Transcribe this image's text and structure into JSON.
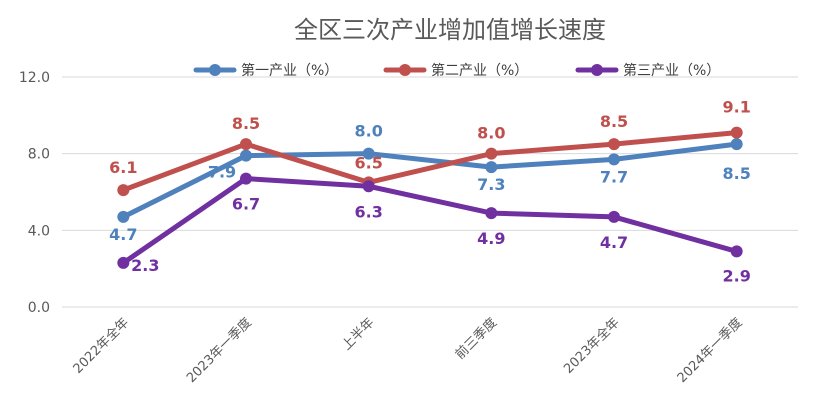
{
  "chart_data": {
    "type": "line",
    "title": "全区三次产业增加值增长速度",
    "categories": [
      "2022年全年",
      "2023年一季度",
      "上半年",
      "前三季度",
      "2023年全年",
      "2024年一季度"
    ],
    "yticks": [
      "12.0",
      "8.0",
      "4.0",
      "0.0"
    ],
    "ylim": [
      0,
      12
    ],
    "grid": true,
    "legend_position": "top",
    "series": [
      {
        "name": "第一产业（%）",
        "color": "#4F81BD",
        "values": [
          4.7,
          7.9,
          8.0,
          7.3,
          7.7,
          8.5
        ],
        "labels": [
          "4.7",
          "7.9",
          "8.0",
          "7.3",
          "7.7",
          "8.5"
        ]
      },
      {
        "name": "第二产业（%）",
        "color": "#C0504D",
        "values": [
          6.1,
          8.5,
          6.5,
          8.0,
          8.5,
          9.1
        ],
        "labels": [
          "6.1",
          "8.5",
          "6.5",
          "8.0",
          "8.5",
          "9.1"
        ]
      },
      {
        "name": "第三产业（%）",
        "color": "#7030A0",
        "values": [
          2.3,
          6.7,
          6.3,
          4.9,
          4.7,
          2.9
        ],
        "labels": [
          "2.3",
          "6.7",
          "6.3",
          "4.9",
          "4.7",
          "2.9"
        ]
      }
    ]
  }
}
